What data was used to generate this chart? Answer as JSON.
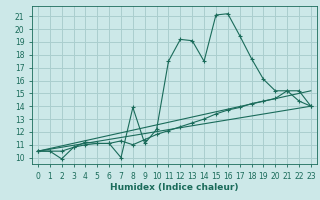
{
  "xlabel": "Humidex (Indice chaleur)",
  "bg_color": "#cce8e8",
  "grid_color": "#aacece",
  "line_color": "#1a6b5a",
  "xlim": [
    -0.5,
    23.5
  ],
  "ylim": [
    9.5,
    21.8
  ],
  "xticks": [
    0,
    1,
    2,
    3,
    4,
    5,
    6,
    7,
    8,
    9,
    10,
    11,
    12,
    13,
    14,
    15,
    16,
    17,
    18,
    19,
    20,
    21,
    22,
    23
  ],
  "yticks": [
    10,
    11,
    12,
    13,
    14,
    15,
    16,
    17,
    18,
    19,
    20,
    21
  ],
  "lines": [
    {
      "x": [
        0,
        1,
        2,
        3,
        4,
        5,
        6,
        7,
        8,
        9,
        10,
        11,
        12,
        13,
        14,
        15,
        16,
        17,
        18,
        19,
        20,
        21,
        22,
        23
      ],
      "y": [
        10.5,
        10.5,
        9.9,
        10.8,
        11.2,
        11.1,
        11.1,
        10.0,
        13.9,
        11.1,
        12.2,
        17.5,
        19.2,
        19.1,
        17.5,
        21.1,
        21.2,
        19.5,
        17.7,
        16.1,
        15.2,
        15.2,
        14.4,
        14.0
      ],
      "marker": true
    },
    {
      "x": [
        0,
        2,
        3,
        4,
        5,
        6,
        7,
        8,
        9,
        10,
        11,
        12,
        13,
        14,
        15,
        16,
        17,
        18,
        19,
        20,
        21,
        22,
        23
      ],
      "y": [
        10.5,
        10.5,
        10.8,
        11.0,
        11.1,
        11.1,
        11.3,
        11.0,
        11.4,
        11.8,
        12.1,
        12.4,
        12.7,
        13.0,
        13.4,
        13.7,
        13.9,
        14.2,
        14.4,
        14.6,
        15.2,
        15.2,
        14.0
      ],
      "marker": true
    },
    {
      "x": [
        0,
        23
      ],
      "y": [
        10.5,
        15.2
      ],
      "marker": false
    },
    {
      "x": [
        0,
        23
      ],
      "y": [
        10.5,
        14.0
      ],
      "marker": false
    }
  ]
}
